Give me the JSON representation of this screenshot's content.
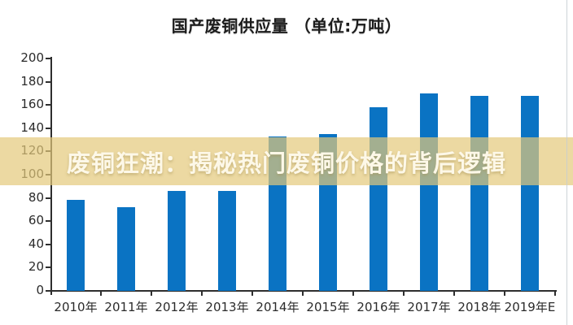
{
  "chart_data": {
    "type": "bar",
    "title": "国产废铜供应量 （单位:万吨）",
    "categories": [
      "2010年",
      "2011年",
      "2012年",
      "2013年",
      "2014年",
      "2015年",
      "2016年",
      "2017年",
      "2018年",
      "2019年E"
    ],
    "values": [
      78,
      72,
      86,
      86,
      133,
      135,
      158,
      170,
      168,
      168
    ],
    "xlabel": "",
    "ylabel": "",
    "ylim": [
      0,
      200
    ],
    "ytick_step": 20,
    "grid": false,
    "legend_position": "none",
    "bar_color": "#0a73c3",
    "axis_color": "#2e2e2e"
  },
  "overlay": {
    "text": "废铜狂潮：揭秘热门废铜价格的背后逻辑",
    "band_color": "rgba(228,201,122,0.70)",
    "text_color": "#fdf8e8"
  }
}
